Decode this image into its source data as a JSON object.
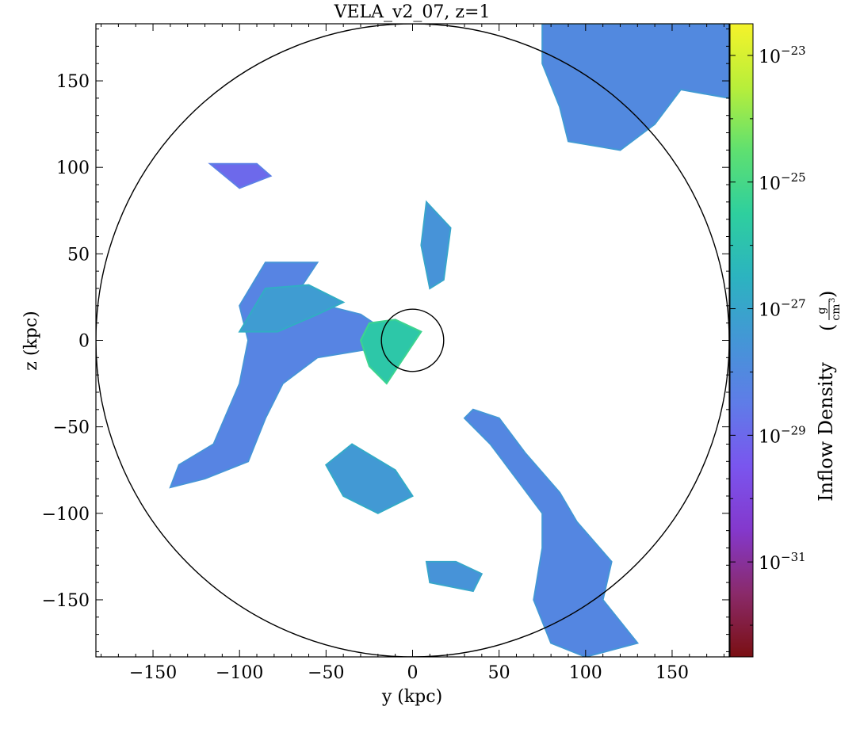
{
  "chart_data": {
    "type": "heatmap",
    "title": "VELA_v2_07, z=1",
    "xlabel": "y  (kpc)",
    "ylabel": "z  (kpc)",
    "xlim": [
      -183,
      183
    ],
    "ylim": [
      -183,
      183
    ],
    "xticks": [
      -150,
      -100,
      -50,
      0,
      50,
      100,
      150
    ],
    "yticks": [
      -150,
      -100,
      -50,
      0,
      50,
      100,
      150
    ],
    "xtick_labels": [
      "−150",
      "−100",
      "−50",
      "0",
      "50",
      "100",
      "150"
    ],
    "ytick_labels": [
      "−150",
      "−100",
      "−50",
      "0",
      "50",
      "100",
      "150"
    ],
    "circles": [
      {
        "center": [
          0,
          0
        ],
        "radius_kpc": 183
      },
      {
        "center": [
          0,
          0
        ],
        "radius_kpc": 18
      }
    ],
    "colorbar": {
      "label": "Inflow Density",
      "unit_numerator": "g",
      "unit_denominator": "cm",
      "unit_denominator_exponent": "3",
      "scale": "log",
      "range_log10": [
        -32.5,
        -22.5
      ],
      "ticks_log10": [
        -23,
        -25,
        -27,
        -29,
        -31
      ],
      "tick_labels": [
        {
          "base": "10",
          "exp": "−23"
        },
        {
          "base": "10",
          "exp": "−25"
        },
        {
          "base": "10",
          "exp": "−27"
        },
        {
          "base": "10",
          "exp": "−29"
        },
        {
          "base": "10",
          "exp": "−31"
        }
      ],
      "colormap": [
        "#7a0f12",
        "#8a2a6a",
        "#8438cc",
        "#7a55ee",
        "#5f7ce8",
        "#4496d6",
        "#2cb3c0",
        "#2ecf9e",
        "#5fe070",
        "#b8ee3a",
        "#f5f32a"
      ]
    },
    "structures": [
      {
        "name": "western filament",
        "points": [
          [
            -140,
            -85
          ],
          [
            -135,
            -72
          ],
          [
            -115,
            -60
          ],
          [
            -100,
            -25
          ],
          [
            -95,
            0
          ],
          [
            -100,
            20
          ],
          [
            -85,
            45
          ],
          [
            -55,
            45
          ],
          [
            -65,
            30
          ],
          [
            -50,
            20
          ],
          [
            -30,
            15
          ],
          [
            -15,
            5
          ],
          [
            -25,
            -5
          ],
          [
            -55,
            -10
          ],
          [
            -75,
            -25
          ],
          [
            -85,
            -45
          ],
          [
            -95,
            -70
          ],
          [
            -120,
            -80
          ]
        ],
        "log_density": -28.2
      },
      {
        "name": "western branch",
        "points": [
          [
            -100,
            5
          ],
          [
            -85,
            30
          ],
          [
            -60,
            32
          ],
          [
            -40,
            22
          ],
          [
            -55,
            15
          ],
          [
            -78,
            5
          ]
        ],
        "log_density": -27.3
      },
      {
        "name": "core inflow",
        "points": [
          [
            -25,
            10
          ],
          [
            -10,
            12
          ],
          [
            5,
            5
          ],
          [
            -5,
            -10
          ],
          [
            -15,
            -25
          ],
          [
            -25,
            -15
          ],
          [
            -30,
            0
          ]
        ],
        "log_density": -25.8
      },
      {
        "name": "southeast filament",
        "points": [
          [
            30,
            -45
          ],
          [
            45,
            -60
          ],
          [
            60,
            -80
          ],
          [
            75,
            -100
          ],
          [
            75,
            -120
          ],
          [
            70,
            -150
          ],
          [
            80,
            -175
          ],
          [
            100,
            -183
          ],
          [
            130,
            -175
          ],
          [
            110,
            -150
          ],
          [
            115,
            -128
          ],
          [
            95,
            -105
          ],
          [
            85,
            -88
          ],
          [
            65,
            -65
          ],
          [
            50,
            -45
          ],
          [
            35,
            -40
          ]
        ],
        "log_density": -28.1
      },
      {
        "name": "northeast lobe",
        "points": [
          [
            75,
            183
          ],
          [
            183,
            183
          ],
          [
            183,
            140
          ],
          [
            155,
            145
          ],
          [
            140,
            125
          ],
          [
            120,
            110
          ],
          [
            90,
            115
          ],
          [
            85,
            135
          ],
          [
            75,
            160
          ]
        ],
        "log_density": -28.0
      },
      {
        "name": "north filament",
        "points": [
          [
            8,
            80
          ],
          [
            22,
            65
          ],
          [
            18,
            35
          ],
          [
            10,
            30
          ],
          [
            5,
            55
          ]
        ],
        "log_density": -27.6
      },
      {
        "name": "south clumps",
        "points": [
          [
            -35,
            -60
          ],
          [
            -10,
            -75
          ],
          [
            0,
            -90
          ],
          [
            -20,
            -100
          ],
          [
            -40,
            -90
          ],
          [
            -50,
            -72
          ]
        ],
        "log_density": -27.4
      },
      {
        "name": "northwest clump",
        "points": [
          [
            -117,
            102
          ],
          [
            -90,
            102
          ],
          [
            -82,
            95
          ],
          [
            -100,
            88
          ]
        ],
        "log_density": -29.0
      },
      {
        "name": "bottom clumps",
        "points": [
          [
            8,
            -128
          ],
          [
            25,
            -128
          ],
          [
            40,
            -135
          ],
          [
            35,
            -145
          ],
          [
            10,
            -140
          ]
        ],
        "log_density": -27.6
      }
    ]
  }
}
